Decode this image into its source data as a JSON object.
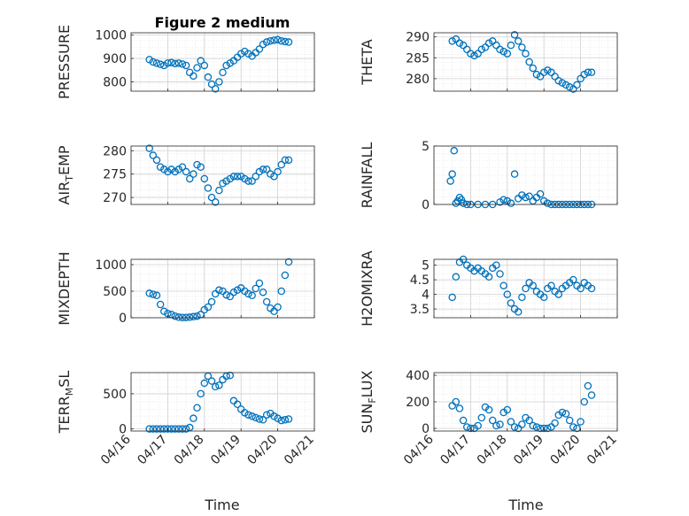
{
  "figure": {
    "title": "Figure 2 medium",
    "xlabel": "Time"
  },
  "chart_data": [
    {
      "type": "scatter",
      "ylabel": "PRESSURE",
      "sub": "",
      "ylim": [
        760,
        1010
      ],
      "yticks": [
        800,
        900,
        1000
      ],
      "ytick_labels": [
        "800",
        "900",
        "1000"
      ],
      "x": [
        0.5,
        0.6,
        0.7,
        0.8,
        0.9,
        1.0,
        1.1,
        1.2,
        1.3,
        1.4,
        1.5,
        1.6,
        1.7,
        1.8,
        1.9,
        2.0,
        2.1,
        2.2,
        2.3,
        2.4,
        2.5,
        2.6,
        2.7,
        2.8,
        2.9,
        3.0,
        3.1,
        3.2,
        3.3,
        3.4,
        3.5,
        3.6,
        3.7,
        3.8,
        3.9,
        4.0,
        4.1,
        4.2,
        4.3
      ],
      "y": [
        895,
        885,
        880,
        875,
        870,
        880,
        882,
        878,
        880,
        876,
        870,
        840,
        825,
        860,
        890,
        870,
        820,
        790,
        770,
        800,
        840,
        870,
        880,
        890,
        905,
        920,
        930,
        920,
        910,
        925,
        940,
        960,
        970,
        975,
        978,
        980,
        975,
        972,
        970
      ]
    },
    {
      "type": "scatter",
      "ylabel": "THETA",
      "sub": "",
      "ylim": [
        277,
        291
      ],
      "yticks": [
        280,
        285,
        290
      ],
      "ytick_labels": [
        "280",
        "285",
        "290"
      ],
      "x": [
        0.5,
        0.6,
        0.7,
        0.8,
        0.9,
        1.0,
        1.1,
        1.2,
        1.3,
        1.4,
        1.5,
        1.6,
        1.7,
        1.8,
        1.9,
        2.0,
        2.1,
        2.2,
        2.3,
        2.4,
        2.5,
        2.6,
        2.7,
        2.8,
        2.9,
        3.0,
        3.1,
        3.2,
        3.3,
        3.4,
        3.5,
        3.6,
        3.7,
        3.8,
        3.9,
        4.0,
        4.1,
        4.2,
        4.3
      ],
      "y": [
        289,
        289.5,
        288.5,
        288,
        287,
        286,
        285.5,
        286,
        287,
        287.5,
        288.5,
        289,
        288,
        287,
        286.5,
        286,
        288,
        290.5,
        289,
        287.5,
        286,
        284,
        282.5,
        281,
        280.5,
        281.5,
        282,
        281.5,
        280.5,
        279.5,
        279,
        278.5,
        278,
        277.5,
        278.5,
        280,
        281,
        281.5,
        281.5
      ]
    },
    {
      "type": "scatter",
      "ylabel": "AIR_TEMP",
      "sub": "T",
      "ylim": [
        268.5,
        281
      ],
      "yticks": [
        270,
        275,
        280
      ],
      "ytick_labels": [
        "270",
        "275",
        "280"
      ],
      "x": [
        0.5,
        0.6,
        0.7,
        0.8,
        0.9,
        1.0,
        1.1,
        1.2,
        1.3,
        1.4,
        1.5,
        1.6,
        1.7,
        1.8,
        1.9,
        2.0,
        2.1,
        2.2,
        2.3,
        2.4,
        2.5,
        2.6,
        2.7,
        2.8,
        2.9,
        3.0,
        3.1,
        3.2,
        3.3,
        3.4,
        3.5,
        3.6,
        3.7,
        3.8,
        3.9,
        4.0,
        4.1,
        4.2,
        4.3
      ],
      "y": [
        280.5,
        279,
        278,
        276.5,
        276,
        275.5,
        276,
        275.5,
        276,
        276.5,
        275.5,
        274,
        275,
        277,
        276.5,
        274,
        272,
        270,
        269,
        271.5,
        273,
        273.5,
        274,
        274.5,
        274.5,
        274.5,
        274,
        273.5,
        273.5,
        274.5,
        275.5,
        276,
        276,
        275,
        274.5,
        275.5,
        277,
        278,
        278
      ]
    },
    {
      "type": "scatter",
      "ylabel": "RAINFALL",
      "sub": "",
      "ylim": [
        0,
        5
      ],
      "yticks": [
        0,
        5
      ],
      "ytick_labels": [
        "0",
        "5"
      ],
      "x": [
        0.45,
        0.5,
        0.55,
        0.6,
        0.65,
        0.7,
        0.75,
        0.8,
        0.9,
        1.0,
        1.2,
        1.4,
        1.6,
        1.8,
        1.9,
        2.0,
        2.1,
        2.2,
        2.3,
        2.4,
        2.5,
        2.6,
        2.7,
        2.8,
        2.9,
        3.0,
        3.1,
        3.2,
        3.3,
        3.4,
        3.5,
        3.6,
        3.7,
        3.8,
        3.9,
        4.0,
        4.1,
        4.2,
        4.3
      ],
      "y": [
        2.0,
        2.6,
        4.6,
        0.1,
        0.3,
        0.6,
        0.4,
        0.1,
        0,
        0,
        0,
        0,
        0,
        0.2,
        0.4,
        0.3,
        0.1,
        2.6,
        0.5,
        0.8,
        0.6,
        0.7,
        0.3,
        0.6,
        0.9,
        0.3,
        0.1,
        0,
        0,
        0,
        0,
        0,
        0,
        0,
        0,
        0,
        0,
        0,
        0
      ]
    },
    {
      "type": "scatter",
      "ylabel": "MIXDEPTH",
      "sub": "",
      "ylim": [
        0,
        1100
      ],
      "yticks": [
        0,
        500,
        1000
      ],
      "ytick_labels": [
        "0",
        "500",
        "1000"
      ],
      "x": [
        0.5,
        0.6,
        0.7,
        0.8,
        0.9,
        1.0,
        1.1,
        1.2,
        1.3,
        1.4,
        1.5,
        1.6,
        1.7,
        1.8,
        1.9,
        2.0,
        2.1,
        2.2,
        2.3,
        2.4,
        2.5,
        2.6,
        2.7,
        2.8,
        2.9,
        3.0,
        3.1,
        3.2,
        3.3,
        3.4,
        3.5,
        3.6,
        3.7,
        3.8,
        3.9,
        4.0,
        4.1,
        4.2,
        4.3
      ],
      "y": [
        460,
        440,
        420,
        250,
        120,
        80,
        60,
        30,
        10,
        5,
        5,
        10,
        20,
        30,
        60,
        150,
        200,
        300,
        450,
        520,
        500,
        430,
        400,
        480,
        520,
        560,
        500,
        450,
        420,
        550,
        650,
        480,
        300,
        180,
        120,
        200,
        500,
        800,
        1050
      ]
    },
    {
      "type": "scatter",
      "ylabel": "H2OMIXRA",
      "sub": "",
      "ylim": [
        3.2,
        5.2
      ],
      "yticks": [
        3.5,
        4,
        4.5,
        5
      ],
      "ytick_labels": [
        "3.5",
        "4",
        "4.5",
        "5"
      ],
      "x": [
        0.5,
        0.6,
        0.7,
        0.8,
        0.9,
        1.0,
        1.1,
        1.2,
        1.3,
        1.4,
        1.5,
        1.6,
        1.7,
        1.8,
        1.9,
        2.0,
        2.1,
        2.2,
        2.3,
        2.4,
        2.5,
        2.6,
        2.7,
        2.8,
        2.9,
        3.0,
        3.1,
        3.2,
        3.3,
        3.4,
        3.5,
        3.6,
        3.7,
        3.8,
        3.9,
        4.0,
        4.1,
        4.2,
        4.3
      ],
      "y": [
        3.9,
        4.6,
        5.1,
        5.2,
        5.0,
        4.9,
        4.8,
        4.9,
        4.8,
        4.7,
        4.6,
        4.9,
        5.0,
        4.7,
        4.3,
        4.0,
        3.7,
        3.5,
        3.4,
        3.9,
        4.2,
        4.4,
        4.3,
        4.1,
        4.0,
        3.9,
        4.2,
        4.3,
        4.1,
        4.0,
        4.2,
        4.3,
        4.4,
        4.5,
        4.3,
        4.2,
        4.4,
        4.3,
        4.2
      ]
    },
    {
      "type": "scatter",
      "ylabel": "TERR_MSL",
      "sub": "M",
      "ylim": [
        -30,
        800
      ],
      "yticks": [
        0,
        500
      ],
      "ytick_labels": [
        "0",
        "500"
      ],
      "x": [
        0.5,
        0.6,
        0.7,
        0.8,
        0.9,
        1.0,
        1.1,
        1.2,
        1.3,
        1.4,
        1.5,
        1.6,
        1.7,
        1.8,
        1.9,
        2.0,
        2.1,
        2.2,
        2.3,
        2.4,
        2.5,
        2.6,
        2.7,
        2.8,
        2.9,
        3.0,
        3.1,
        3.2,
        3.3,
        3.4,
        3.5,
        3.6,
        3.7,
        3.8,
        3.9,
        4.0,
        4.1,
        4.2,
        4.3
      ],
      "y": [
        0,
        0,
        0,
        0,
        0,
        0,
        0,
        0,
        0,
        0,
        0,
        20,
        150,
        300,
        500,
        650,
        750,
        680,
        600,
        620,
        700,
        750,
        760,
        400,
        350,
        280,
        230,
        200,
        180,
        160,
        140,
        130,
        200,
        220,
        180,
        150,
        120,
        130,
        140
      ]
    },
    {
      "type": "scatter",
      "ylabel": "SUN_FLUX",
      "sub": "F",
      "ylim": [
        -20,
        420
      ],
      "yticks": [
        0,
        200,
        400
      ],
      "ytick_labels": [
        "0",
        "200",
        "400"
      ],
      "x": [
        0.5,
        0.6,
        0.7,
        0.8,
        0.9,
        1.0,
        1.1,
        1.2,
        1.3,
        1.4,
        1.5,
        1.6,
        1.7,
        1.8,
        1.9,
        2.0,
        2.1,
        2.2,
        2.3,
        2.4,
        2.5,
        2.6,
        2.7,
        2.8,
        2.9,
        3.0,
        3.1,
        3.2,
        3.3,
        3.4,
        3.5,
        3.6,
        3.7,
        3.8,
        3.9,
        4.0,
        4.1,
        4.2,
        4.3
      ],
      "y": [
        170,
        200,
        150,
        60,
        10,
        0,
        0,
        20,
        80,
        160,
        140,
        60,
        20,
        30,
        120,
        140,
        50,
        10,
        0,
        30,
        80,
        60,
        20,
        10,
        0,
        0,
        0,
        10,
        40,
        100,
        120,
        110,
        60,
        10,
        0,
        50,
        200,
        320,
        250
      ]
    }
  ],
  "xaxis": {
    "xlim": [
      0,
      5
    ],
    "ticks": [
      0,
      1,
      2,
      3,
      4,
      5
    ],
    "tick_labels": [
      "04/16",
      "04/17",
      "04/18",
      "04/19",
      "04/20",
      "04/21"
    ]
  },
  "colors": {
    "marker": "#0072BD",
    "grid": "#dedede",
    "axis": "#262626"
  }
}
